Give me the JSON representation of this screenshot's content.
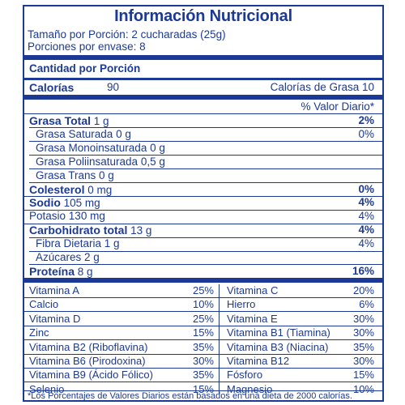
{
  "title": "Información Nutricional",
  "serving_size": "Tamaño por Porción: 2 cucharadas (25g)",
  "servings": "Porciones por envase: 8",
  "amount_per_serving": "Cantidad por Porción",
  "calories_label": "Calorías",
  "calories_value": "90",
  "calories_fat": "Calorías de Grasa  10",
  "dv_header": "% Valor Diario*",
  "nutrients": [
    {
      "name": "Grasa Total",
      "amount": "1 g",
      "dv": "2%",
      "bold": true,
      "indent": false
    },
    {
      "name": "Grasa Saturada",
      "amount": "0 g",
      "dv": "0%",
      "bold": false,
      "indent": true
    },
    {
      "name": "Grasa Monoinsaturada",
      "amount": "0 g",
      "dv": "",
      "bold": false,
      "indent": true
    },
    {
      "name": "Grasa Poliinsaturada",
      "amount": "0,5 g",
      "dv": "",
      "bold": false,
      "indent": true
    },
    {
      "name": "Grasa Trans",
      "amount": "0 g",
      "dv": "",
      "bold": false,
      "indent": true
    },
    {
      "name": "Colesterol",
      "amount": "0 mg",
      "dv": "0%",
      "bold": true,
      "indent": false
    },
    {
      "name": "Sodio",
      "amount": "105 mg",
      "dv": "4%",
      "bold": true,
      "indent": false
    },
    {
      "name": "Potasio",
      "amount": "130 mg",
      "dv": "4%",
      "bold": false,
      "indent": false
    },
    {
      "name": "Carbohidrato total",
      "amount": "13 g",
      "dv": "4%",
      "bold": true,
      "indent": false
    },
    {
      "name": "Fibra Dietaria",
      "amount": "1 g",
      "dv": "4%",
      "bold": false,
      "indent": true
    },
    {
      "name": "Azúcares",
      "amount": "2 g",
      "dv": "",
      "bold": false,
      "indent": true
    },
    {
      "name": "Proteína",
      "amount": "8 g",
      "dv": "16%",
      "bold": true,
      "indent": false
    }
  ],
  "vitamins": [
    [
      {
        "name": "Vitamina A",
        "dv": "25%"
      },
      {
        "name": "Vitamina C",
        "dv": "20%"
      }
    ],
    [
      {
        "name": "Calcio",
        "dv": "10%"
      },
      {
        "name": "Hierro",
        "dv": "6%"
      }
    ],
    [
      {
        "name": "Vitamina D",
        "dv": "25%"
      },
      {
        "name": "Vitamina E",
        "dv": "30%"
      }
    ],
    [
      {
        "name": "Zinc",
        "dv": "15%"
      },
      {
        "name": "Vitamina B1 (Tiamina)",
        "dv": "30%"
      }
    ],
    [
      {
        "name": "Vitamina B2 (Riboflavina)",
        "dv": "35%"
      },
      {
        "name": "Vitamina B3 (Niacina)",
        "dv": "35%"
      }
    ],
    [
      {
        "name": "Vitamina B6 (Pirodoxina)",
        "dv": "30%"
      },
      {
        "name": "Vitamina B12",
        "dv": "30%"
      }
    ],
    [
      {
        "name": "Vitamina B9 (Ácido Fólico)",
        "dv": "35%"
      },
      {
        "name": "Fósforo",
        "dv": "15%"
      }
    ],
    [
      {
        "name": "Selenio",
        "dv": "15%"
      },
      {
        "name": "Magnesio",
        "dv": "10%"
      }
    ]
  ],
  "footnote": "*Los Porcentajes de Valores Diarios están basados en una dieta de 2000 calorías."
}
